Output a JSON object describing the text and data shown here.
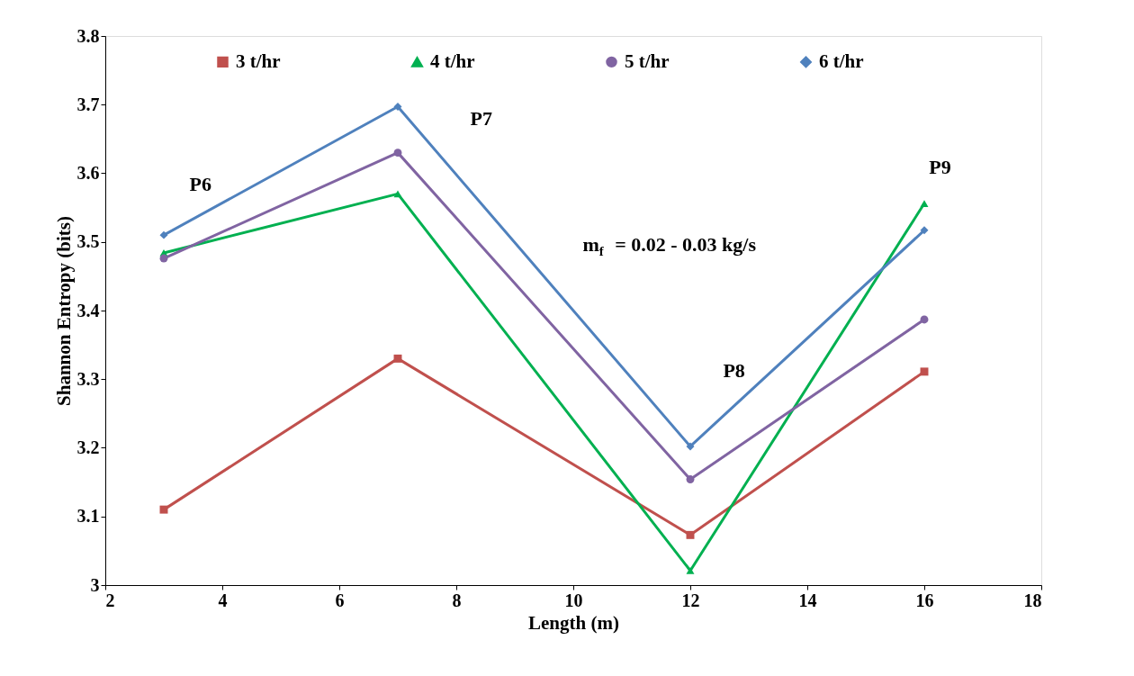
{
  "chart_data": {
    "type": "line",
    "xlabel": "Length (m)",
    "ylabel": "Shannon Entropy (bits)",
    "x": [
      3,
      7,
      12,
      16
    ],
    "series": [
      {
        "name": "3 t/hr",
        "color": "#c0504d",
        "marker": "square",
        "values": [
          3.11,
          3.33,
          3.073,
          3.311
        ]
      },
      {
        "name": "4 t/hr",
        "color": "#00b050",
        "marker": "triangle",
        "values": [
          3.484,
          3.57,
          3.021,
          3.556
        ]
      },
      {
        "name": "5 t/hr",
        "color": "#8064a2",
        "marker": "circle",
        "values": [
          3.476,
          3.63,
          3.154,
          3.387
        ]
      },
      {
        "name": "6 t/hr",
        "color": "#4f81bd",
        "marker": "diamond",
        "values": [
          3.51,
          3.697,
          3.202,
          3.517
        ]
      }
    ],
    "xlim": [
      2,
      18
    ],
    "xticks": [
      2,
      4,
      6,
      8,
      10,
      12,
      14,
      16,
      18
    ],
    "ylim": [
      3,
      3.8
    ],
    "yticks": [
      3,
      3.1,
      3.2,
      3.3,
      3.4,
      3.5,
      3.6,
      3.7,
      3.8
    ],
    "grid": false,
    "legend": "top",
    "line_style": "solid",
    "annotations": [
      "P6",
      "P7",
      "P8",
      "P9",
      "m$_{f}$ = 0.02 - 0.03 kg/s"
    ]
  }
}
